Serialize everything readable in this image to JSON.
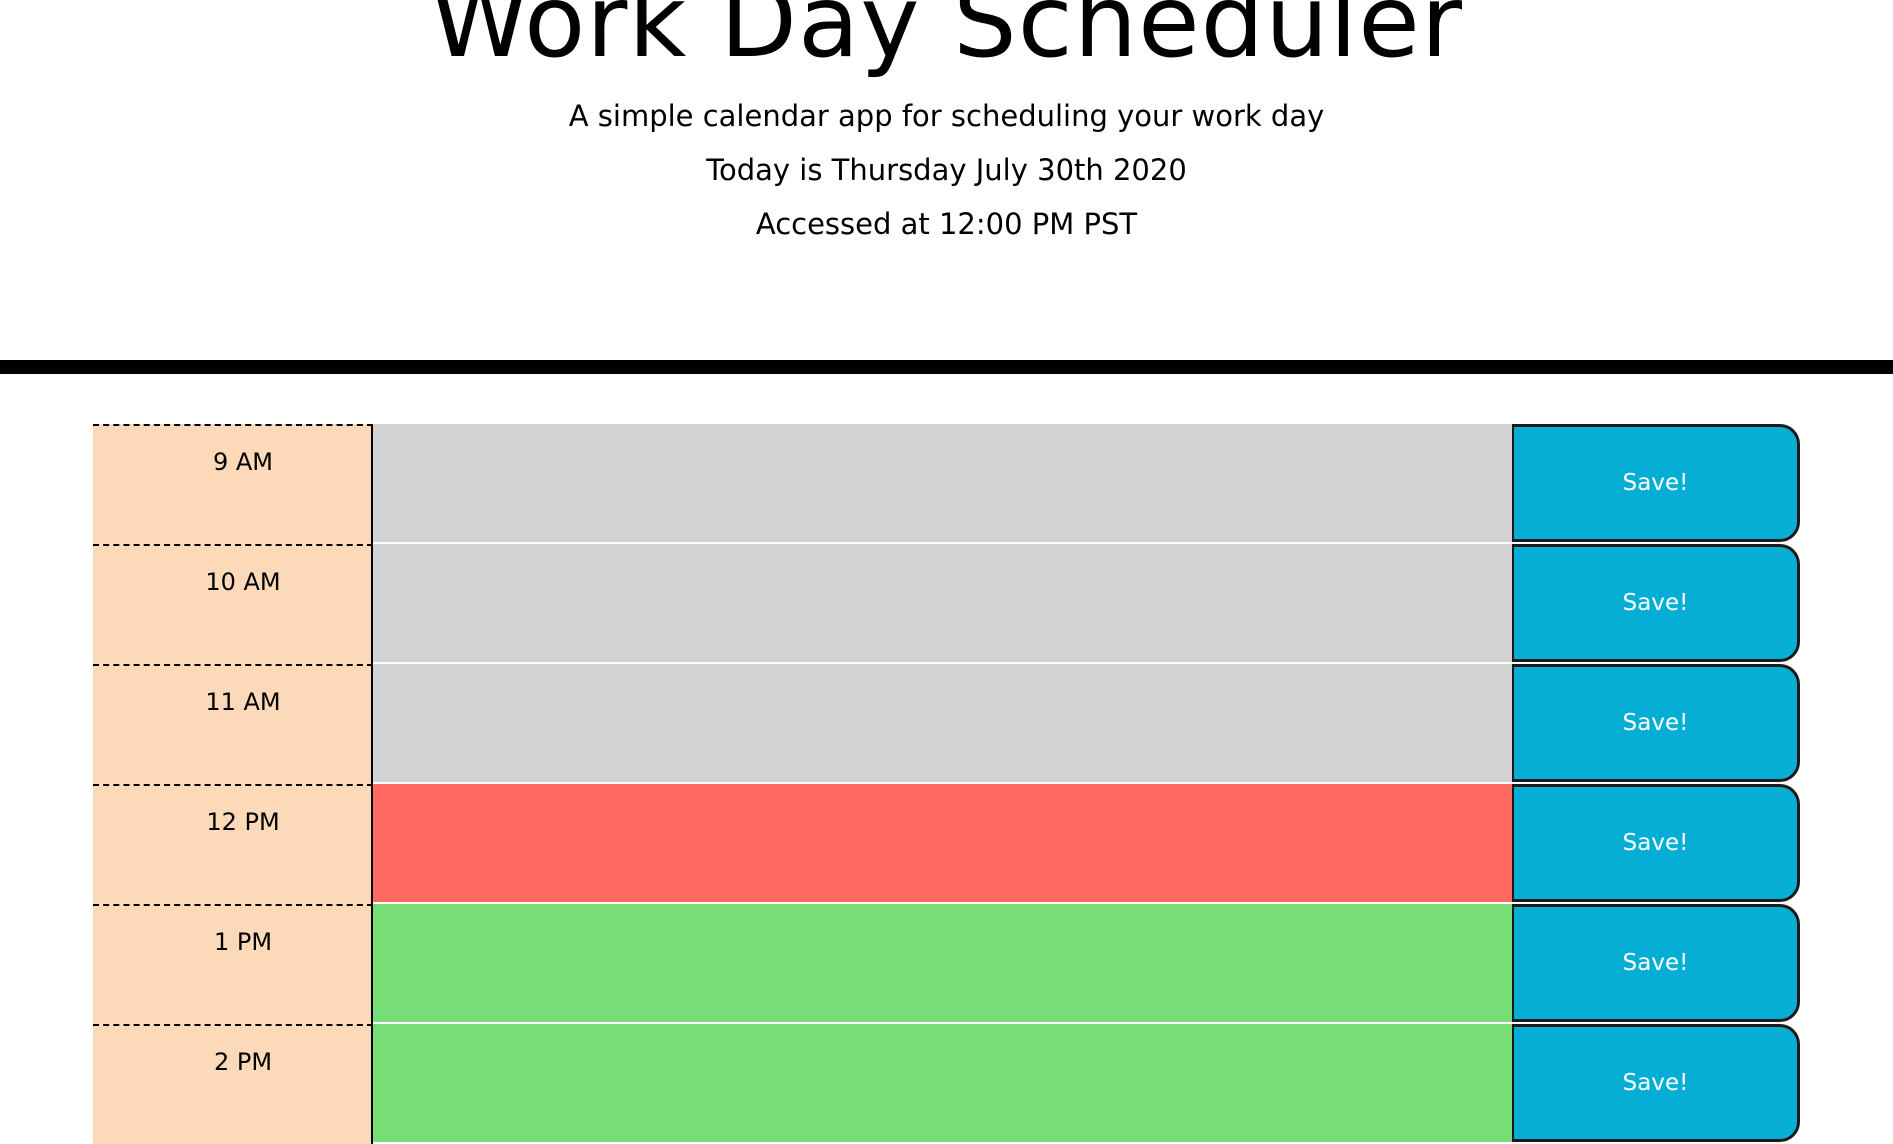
{
  "header": {
    "title": "Work Day Scheduler",
    "subtitle": "A simple calendar app for scheduling your work day",
    "today": "Today is Thursday July 30th 2020",
    "accessed": "Accessed at 12:00 PM PST"
  },
  "schedule": {
    "save_label": "Save!",
    "rows": [
      {
        "hour": "9 AM",
        "status": "past",
        "text": ""
      },
      {
        "hour": "10 AM",
        "status": "past",
        "text": ""
      },
      {
        "hour": "11 AM",
        "status": "past",
        "text": ""
      },
      {
        "hour": "12 PM",
        "status": "present",
        "text": ""
      },
      {
        "hour": "1 PM",
        "status": "future",
        "text": ""
      },
      {
        "hour": "2 PM",
        "status": "future",
        "text": ""
      }
    ]
  },
  "colors": {
    "hour_bg": "#fcd9b9",
    "past": "#d3d3d3",
    "present": "#ff6961",
    "future": "#77dd77",
    "save_button": "#06aed5"
  }
}
